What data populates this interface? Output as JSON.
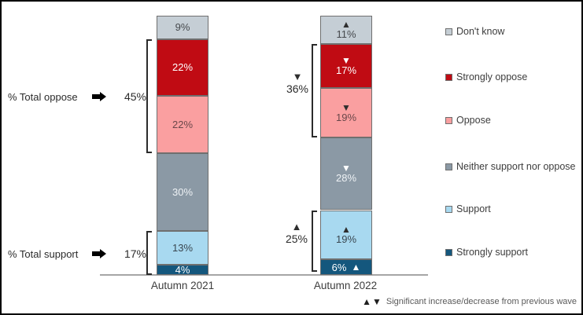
{
  "chart_data": {
    "type": "bar",
    "stacked": true,
    "categories": [
      "Autumn 2021",
      "Autumn 2022"
    ],
    "unit": "%",
    "ylim": [
      0,
      100
    ],
    "legend_position": "right",
    "series": [
      {
        "name": "Strongly support",
        "color": "#14577d",
        "label_color": "#ffffff",
        "values": [
          4,
          6
        ],
        "marker_2022": {
          "direction": "up",
          "color": "#ffffff",
          "placement": "right"
        }
      },
      {
        "name": "Support",
        "color": "#a8d9f0",
        "label_color": "#3a4750",
        "values": [
          13,
          19
        ],
        "marker_2022": {
          "direction": "up",
          "color": "#2e2e2e",
          "placement": "above"
        }
      },
      {
        "name": "Neither support nor oppose",
        "color": "#8b99a5",
        "label_color": "#eef2f5",
        "values": [
          30,
          28
        ],
        "marker_2022": {
          "direction": "down",
          "color": "#ffffff",
          "placement": "above"
        }
      },
      {
        "name": "Oppose",
        "color": "#fa9fa0",
        "label_color": "#69474a",
        "values": [
          22,
          19
        ],
        "marker_2022": {
          "direction": "down",
          "color": "#2e2e2e",
          "placement": "above"
        }
      },
      {
        "name": "Strongly oppose",
        "color": "#c00b13",
        "label_color": "#ffffff",
        "values": [
          22,
          17
        ],
        "marker_2022": {
          "direction": "down",
          "color": "#ffffff",
          "placement": "above"
        }
      },
      {
        "name": "Don't know",
        "color": "#c5ced5",
        "label_color": "#46494d",
        "values": [
          9,
          11
        ],
        "marker_2022": {
          "direction": "up",
          "color": "#2e2e2e",
          "placement": "above"
        }
      }
    ],
    "legend_order": [
      "Don't know",
      "Strongly oppose",
      "Oppose",
      "Neither support nor oppose",
      "Support",
      "Strongly support"
    ],
    "annotations": {
      "total_oppose": {
        "label": "% Total oppose",
        "value": "45%"
      },
      "total_support": {
        "label": "% Total support",
        "value": "17%"
      },
      "wave2_oppose": {
        "value": "36%",
        "direction": "down"
      },
      "wave2_support": {
        "value": "25%",
        "direction": "up"
      }
    },
    "note": {
      "icons": "▲▼",
      "text": "Significant increase/decrease from previous wave"
    }
  }
}
